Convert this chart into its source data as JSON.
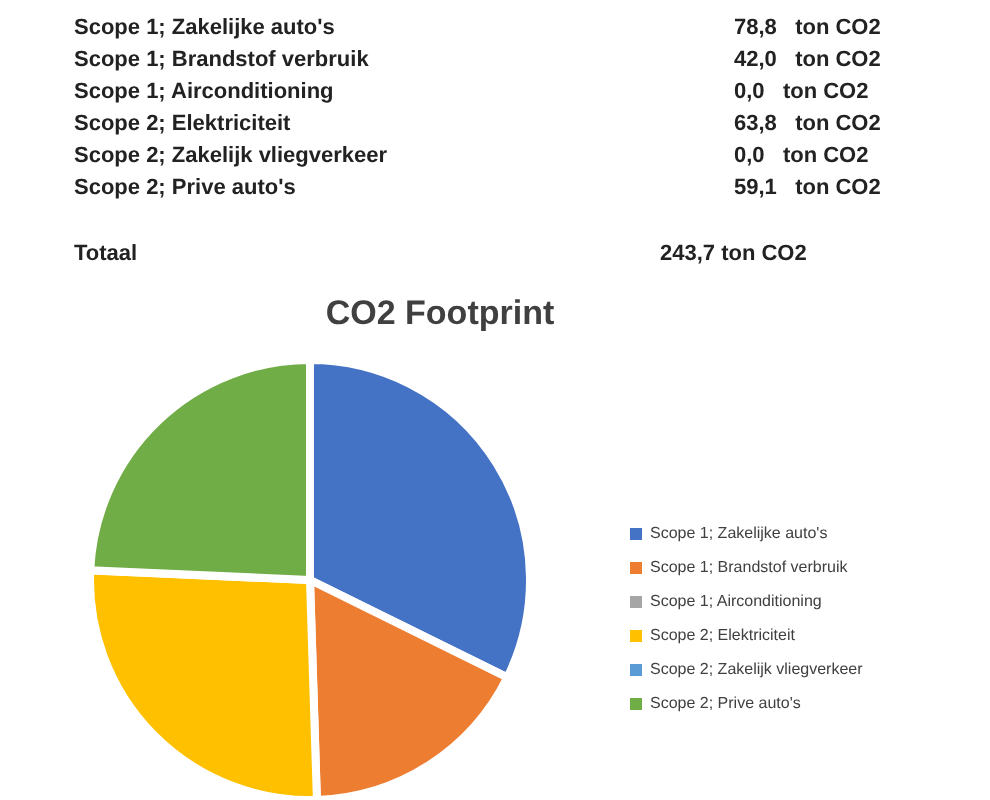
{
  "chart_data": {
    "type": "pie",
    "title": "CO2 Footprint",
    "categories": [
      "Scope 1; Zakelijke auto's",
      "Scope 1; Brandstof verbruik",
      "Scope 1; Airconditioning",
      "Scope 2; Elektriciteit",
      "Scope 2; Zakelijk vliegverkeer",
      "Scope 2; Prive auto's"
    ],
    "values": [
      32.3,
      17.2,
      0,
      26.2,
      0,
      24.3
    ],
    "colors": [
      "#4472c4",
      "#ed7d31",
      "#a5a5a5",
      "#ffc000",
      "#5b9bd5",
      "#70ad47"
    ],
    "annotations": [
      "78,8   ton CO2",
      "42,0   ton CO2",
      "0,0   ton CO2",
      "63,8   ton CO2",
      "0,0   ton CO2",
      "59,1   ton CO2",
      "Totaal",
      "243,7 ton CO2"
    ],
    "legend": "right"
  }
}
